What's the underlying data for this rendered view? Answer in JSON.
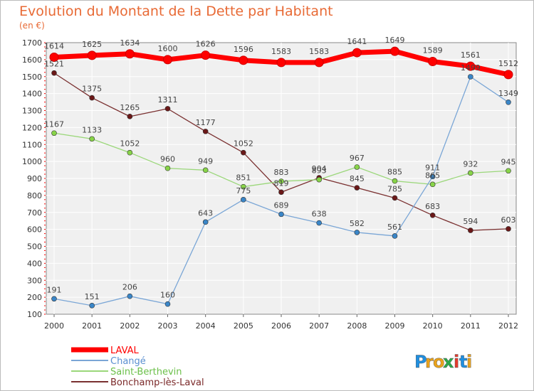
{
  "chart_data": {
    "type": "line",
    "title": "Evolution du Montant de la Dette par Habitant",
    "subtitle": "(en €)",
    "x": [
      "2000",
      "2001",
      "2002",
      "2003",
      "2004",
      "2005",
      "2006",
      "2007",
      "2008",
      "2009",
      "2010",
      "2011",
      "2012"
    ],
    "ylim": [
      100,
      1700
    ],
    "yticks": [
      100,
      200,
      300,
      400,
      500,
      600,
      700,
      800,
      900,
      1000,
      1100,
      1200,
      1300,
      1400,
      1500,
      1600,
      1700
    ],
    "grid": true,
    "legend_position": "bottom-left",
    "series": [
      {
        "name": "LAVAL",
        "color": "#ff0000",
        "marker_color": "#ff0000",
        "legend_color": "#ff0000",
        "values": [
          1614,
          1625,
          1634,
          1600,
          1626,
          1596,
          1583,
          1583,
          1641,
          1649,
          1589,
          1561,
          1512
        ]
      },
      {
        "name": "Changé",
        "color": "#7aa6d6",
        "marker_color": "#3a86c8",
        "legend_color": "#5a8fd0",
        "values": [
          191,
          151,
          206,
          160,
          643,
          775,
          689,
          638,
          582,
          561,
          911,
          1499,
          1349
        ]
      },
      {
        "name": "Saint-Berthevin",
        "color": "#9bd77a",
        "marker_color": "#88d448",
        "legend_color": "#6cc04a",
        "values": [
          1167,
          1133,
          1052,
          960,
          949,
          851,
          883,
          893,
          967,
          885,
          865,
          932,
          945
        ]
      },
      {
        "name": "Bonchamp-lès-Laval",
        "color": "#7a3030",
        "marker_color": "#6b1818",
        "legend_color": "#7a2828",
        "values": [
          1521,
          1375,
          1265,
          1311,
          1177,
          1052,
          819,
          904,
          845,
          785,
          683,
          594,
          603
        ]
      }
    ]
  },
  "branding": {
    "logo_text": "Proxiti"
  }
}
